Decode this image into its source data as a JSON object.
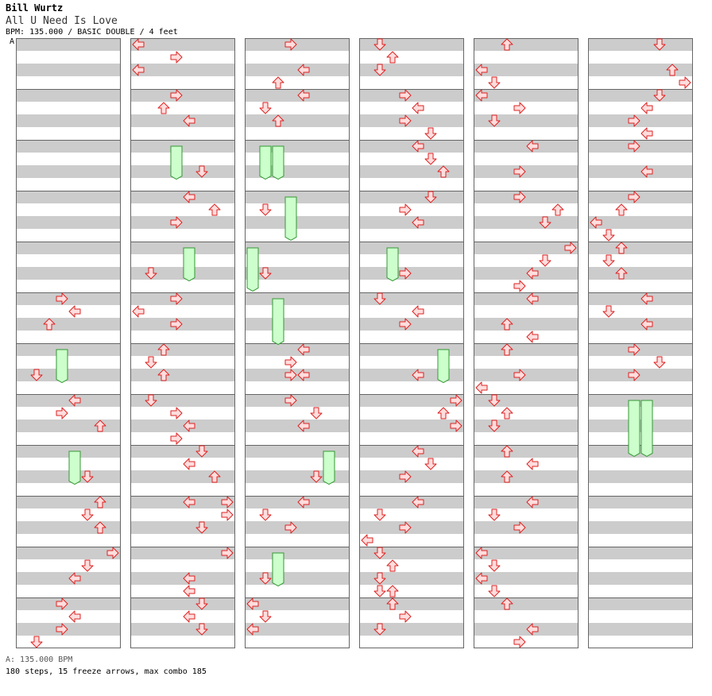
{
  "header": {
    "artist": "Bill Wurtz",
    "title": "All U Need Is Love",
    "info": "BPM: 135.000 / BASIC DOUBLE / 4 feet",
    "bpm_marker": "A"
  },
  "footer": {
    "bpm_label": "A: 135.000 BPM",
    "summary": "180 steps, 15 freeze arrows, max combo 185"
  },
  "colors": {
    "stripe": "#cccccc",
    "bg": "#ffffff",
    "border": "#666666",
    "arrow_stroke": "#dd2222",
    "arrow_fill": "#ffdddd",
    "freeze_fill": "#ccffcc",
    "freeze_stroke": "#339933"
  },
  "chart_data": {
    "type": "step-chart",
    "columns": 6,
    "measures_per_column": 12,
    "lanes": 8,
    "lane_dirs": [
      "left",
      "down",
      "up",
      "right",
      "left",
      "down",
      "up",
      "right"
    ],
    "notes_note": "Each note: [column, measure, row(0-3 quarter beat), lane(0-7)]",
    "notes": [
      [
        0,
        5,
        0,
        3
      ],
      [
        0,
        5,
        1,
        4
      ],
      [
        0,
        5,
        2,
        2
      ],
      [
        0,
        6,
        2,
        1
      ],
      [
        0,
        7,
        0,
        4
      ],
      [
        0,
        7,
        1,
        3
      ],
      [
        0,
        7,
        2,
        6
      ],
      [
        0,
        8,
        2,
        5
      ],
      [
        0,
        9,
        0,
        6
      ],
      [
        0,
        9,
        1,
        5
      ],
      [
        0,
        9,
        2,
        6
      ],
      [
        0,
        10,
        0,
        7
      ],
      [
        0,
        10,
        1,
        5
      ],
      [
        0,
        10,
        2,
        4
      ],
      [
        0,
        11,
        0,
        3
      ],
      [
        0,
        11,
        1,
        4
      ],
      [
        0,
        11,
        2,
        3
      ],
      [
        0,
        11,
        3,
        1
      ],
      [
        1,
        0,
        0,
        0
      ],
      [
        1,
        0,
        1,
        3
      ],
      [
        1,
        0,
        2,
        0
      ],
      [
        1,
        1,
        0,
        3
      ],
      [
        1,
        1,
        1,
        2
      ],
      [
        1,
        1,
        2,
        4
      ],
      [
        1,
        2,
        2,
        5
      ],
      [
        1,
        3,
        0,
        4
      ],
      [
        1,
        3,
        1,
        6
      ],
      [
        1,
        3,
        2,
        3
      ],
      [
        1,
        4,
        2,
        1
      ],
      [
        1,
        5,
        0,
        3
      ],
      [
        1,
        5,
        1,
        0
      ],
      [
        1,
        5,
        2,
        3
      ],
      [
        1,
        6,
        0,
        2
      ],
      [
        1,
        6,
        1,
        1
      ],
      [
        1,
        6,
        2,
        2
      ],
      [
        1,
        7,
        0,
        1
      ],
      [
        1,
        7,
        1,
        3
      ],
      [
        1,
        7,
        2,
        4
      ],
      [
        1,
        7,
        3,
        3
      ],
      [
        1,
        8,
        0,
        5
      ],
      [
        1,
        8,
        1,
        4
      ],
      [
        1,
        8,
        2,
        6
      ],
      [
        1,
        9,
        0,
        4
      ],
      [
        1,
        9,
        0,
        7
      ],
      [
        1,
        9,
        1,
        7
      ],
      [
        1,
        9,
        2,
        5
      ],
      [
        1,
        10,
        0,
        7
      ],
      [
        1,
        10,
        2,
        4
      ],
      [
        1,
        10,
        3,
        4
      ],
      [
        1,
        11,
        0,
        5
      ],
      [
        1,
        11,
        1,
        4
      ],
      [
        1,
        11,
        2,
        5
      ],
      [
        2,
        0,
        0,
        3
      ],
      [
        2,
        0,
        2,
        4
      ],
      [
        2,
        0,
        3,
        2
      ],
      [
        2,
        1,
        0,
        4
      ],
      [
        2,
        1,
        1,
        1
      ],
      [
        2,
        1,
        2,
        2
      ],
      [
        2,
        3,
        1,
        1
      ],
      [
        2,
        4,
        2,
        1
      ],
      [
        2,
        6,
        0,
        4
      ],
      [
        2,
        6,
        1,
        3
      ],
      [
        2,
        6,
        2,
        3
      ],
      [
        2,
        6,
        2,
        4
      ],
      [
        2,
        7,
        0,
        3
      ],
      [
        2,
        7,
        1,
        5
      ],
      [
        2,
        7,
        2,
        4
      ],
      [
        2,
        8,
        2,
        5
      ],
      [
        2,
        9,
        0,
        4
      ],
      [
        2,
        9,
        1,
        1
      ],
      [
        2,
        9,
        2,
        3
      ],
      [
        2,
        10,
        2,
        1
      ],
      [
        2,
        11,
        0,
        0
      ],
      [
        2,
        11,
        1,
        1
      ],
      [
        2,
        11,
        2,
        0
      ],
      [
        3,
        0,
        0,
        1
      ],
      [
        3,
        0,
        1,
        2
      ],
      [
        3,
        0,
        2,
        1
      ],
      [
        3,
        1,
        0,
        3
      ],
      [
        3,
        1,
        1,
        4
      ],
      [
        3,
        1,
        2,
        3
      ],
      [
        3,
        1,
        3,
        5
      ],
      [
        3,
        2,
        0,
        4
      ],
      [
        3,
        2,
        1,
        5
      ],
      [
        3,
        2,
        2,
        6
      ],
      [
        3,
        3,
        0,
        5
      ],
      [
        3,
        3,
        1,
        3
      ],
      [
        3,
        3,
        2,
        4
      ],
      [
        3,
        4,
        2,
        3
      ],
      [
        3,
        5,
        0,
        1
      ],
      [
        3,
        5,
        1,
        4
      ],
      [
        3,
        5,
        2,
        3
      ],
      [
        3,
        6,
        2,
        4
      ],
      [
        3,
        7,
        0,
        7
      ],
      [
        3,
        7,
        1,
        6
      ],
      [
        3,
        7,
        2,
        7
      ],
      [
        3,
        8,
        0,
        4
      ],
      [
        3,
        8,
        1,
        5
      ],
      [
        3,
        8,
        2,
        3
      ],
      [
        3,
        9,
        0,
        4
      ],
      [
        3,
        9,
        1,
        1
      ],
      [
        3,
        9,
        2,
        3
      ],
      [
        3,
        9,
        3,
        0
      ],
      [
        3,
        10,
        0,
        1
      ],
      [
        3,
        10,
        1,
        2
      ],
      [
        3,
        10,
        2,
        1
      ],
      [
        3,
        10,
        3,
        1
      ],
      [
        3,
        10,
        3,
        2
      ],
      [
        3,
        11,
        0,
        2
      ],
      [
        3,
        11,
        1,
        3
      ],
      [
        3,
        11,
        2,
        1
      ],
      [
        4,
        0,
        0,
        2
      ],
      [
        4,
        0,
        2,
        0
      ],
      [
        4,
        0,
        3,
        1
      ],
      [
        4,
        1,
        0,
        0
      ],
      [
        4,
        1,
        1,
        3
      ],
      [
        4,
        1,
        2,
        1
      ],
      [
        4,
        2,
        0,
        4
      ],
      [
        4,
        2,
        2,
        3
      ],
      [
        4,
        3,
        0,
        3
      ],
      [
        4,
        3,
        1,
        6
      ],
      [
        4,
        3,
        2,
        5
      ],
      [
        4,
        4,
        0,
        7
      ],
      [
        4,
        4,
        1,
        5
      ],
      [
        4,
        4,
        2,
        4
      ],
      [
        4,
        4,
        3,
        3
      ],
      [
        4,
        5,
        0,
        4
      ],
      [
        4,
        5,
        2,
        2
      ],
      [
        4,
        5,
        3,
        4
      ],
      [
        4,
        6,
        0,
        2
      ],
      [
        4,
        6,
        2,
        3
      ],
      [
        4,
        6,
        3,
        0
      ],
      [
        4,
        7,
        0,
        1
      ],
      [
        4,
        7,
        1,
        2
      ],
      [
        4,
        7,
        2,
        1
      ],
      [
        4,
        8,
        0,
        2
      ],
      [
        4,
        8,
        1,
        4
      ],
      [
        4,
        8,
        2,
        2
      ],
      [
        4,
        9,
        0,
        4
      ],
      [
        4,
        9,
        1,
        1
      ],
      [
        4,
        9,
        2,
        3
      ],
      [
        4,
        10,
        0,
        0
      ],
      [
        4,
        10,
        1,
        1
      ],
      [
        4,
        10,
        2,
        0
      ],
      [
        4,
        10,
        3,
        1
      ],
      [
        4,
        11,
        0,
        2
      ],
      [
        4,
        11,
        2,
        4
      ],
      [
        4,
        11,
        3,
        3
      ],
      [
        5,
        0,
        0,
        5
      ],
      [
        5,
        0,
        2,
        6
      ],
      [
        5,
        0,
        3,
        7
      ],
      [
        5,
        1,
        0,
        5
      ],
      [
        5,
        1,
        1,
        4
      ],
      [
        5,
        1,
        2,
        3
      ],
      [
        5,
        1,
        3,
        4
      ],
      [
        5,
        2,
        0,
        3
      ],
      [
        5,
        2,
        2,
        4
      ],
      [
        5,
        3,
        0,
        3
      ],
      [
        5,
        3,
        1,
        2
      ],
      [
        5,
        3,
        2,
        0
      ],
      [
        5,
        3,
        3,
        1
      ],
      [
        5,
        4,
        0,
        2
      ],
      [
        5,
        4,
        1,
        1
      ],
      [
        5,
        4,
        2,
        2
      ],
      [
        5,
        5,
        0,
        4
      ],
      [
        5,
        5,
        1,
        1
      ],
      [
        5,
        5,
        2,
        4
      ],
      [
        5,
        6,
        0,
        3
      ],
      [
        5,
        6,
        1,
        5
      ],
      [
        5,
        6,
        2,
        3
      ]
    ],
    "freezes_note": "Each freeze: [column, measure, row, lane, length in quarter rows]",
    "freezes": [
      [
        0,
        6,
        0,
        3,
        2.6
      ],
      [
        0,
        8,
        0,
        4,
        2.6
      ],
      [
        1,
        2,
        0,
        3,
        2.6
      ],
      [
        1,
        4,
        0,
        4,
        2.6
      ],
      [
        2,
        2,
        0,
        1,
        2.6
      ],
      [
        2,
        2,
        0,
        2,
        2.6
      ],
      [
        2,
        3,
        0,
        3,
        3.4
      ],
      [
        2,
        4,
        0,
        0,
        3.4
      ],
      [
        2,
        5,
        0,
        2,
        3.6
      ],
      [
        2,
        8,
        0,
        6,
        2.6
      ],
      [
        2,
        10,
        0,
        2,
        2.6
      ],
      [
        3,
        4,
        0,
        2,
        2.6
      ],
      [
        3,
        6,
        0,
        6,
        2.6
      ],
      [
        5,
        7,
        0,
        3,
        4.4
      ],
      [
        5,
        7,
        0,
        4,
        4.4
      ]
    ]
  }
}
